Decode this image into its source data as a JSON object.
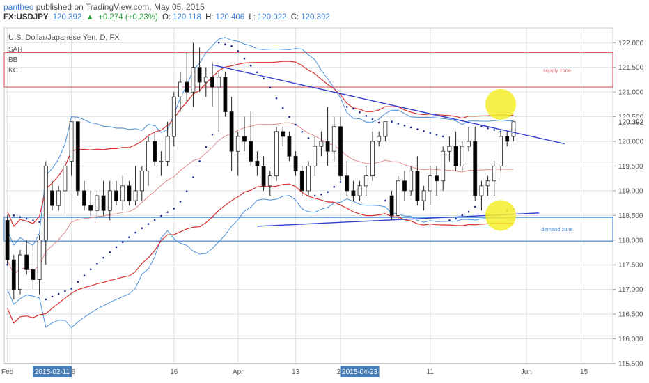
{
  "header": {
    "user": "pantheo",
    "published": "published on TradingView.com, May 05, 2015",
    "symbol": "FX:USDJPY",
    "last": "120.392",
    "change": "+0.274 (+0.23%)",
    "open_label": "O:",
    "open": "120.118",
    "high_label": "H:",
    "high": "120.406",
    "low_label": "L:",
    "low": "120.022",
    "close_label": "C:",
    "close": "120.392"
  },
  "chart_data": {
    "type": "candlestick",
    "title": "U.S. Dollar/Japanese Yen, D, FX",
    "indicators": [
      "SAR",
      "BB",
      "KC"
    ],
    "ylim": [
      115.5,
      122.3
    ],
    "y_ticks": [
      "122.000",
      "121.500",
      "121.000",
      "120.500",
      "120.000",
      "119.500",
      "119.000",
      "118.500",
      "118.000",
      "117.500",
      "117.000",
      "116.500",
      "116.000",
      "115.500"
    ],
    "last_price_label": "120.392",
    "x_labels": [
      {
        "text": "Feb",
        "bar": 0
      },
      {
        "text": "16",
        "bar": 10
      },
      {
        "text": "2015-02-11",
        "bar": 7,
        "highlight": true
      },
      {
        "text": "16",
        "bar": 26
      },
      {
        "text": "Apr",
        "bar": 36
      },
      {
        "text": "13",
        "bar": 45
      },
      {
        "text": "22",
        "bar": 52
      },
      {
        "text": "2015-04-23",
        "bar": 55,
        "highlight": true
      },
      {
        "text": "11",
        "bar": 66
      },
      {
        "text": "Jun",
        "bar": 81
      },
      {
        "text": "15",
        "bar": 90
      }
    ],
    "candles": [
      [
        118.4,
        118.5,
        117.5,
        117.6
      ],
      [
        117.6,
        117.7,
        116.8,
        117.0
      ],
      [
        117.0,
        117.8,
        116.9,
        117.7
      ],
      [
        117.7,
        118.0,
        117.3,
        117.4
      ],
      [
        117.4,
        117.9,
        117.0,
        117.2
      ],
      [
        117.2,
        118.1,
        116.9,
        118.0
      ],
      [
        118.0,
        119.6,
        117.5,
        119.5
      ],
      [
        119.0,
        119.2,
        118.6,
        118.7
      ],
      [
        118.7,
        119.1,
        118.6,
        119.0
      ],
      [
        119.0,
        119.6,
        118.5,
        119.5
      ],
      [
        119.6,
        120.4,
        119.3,
        120.4
      ],
      [
        120.4,
        120.4,
        118.9,
        119.0
      ],
      [
        119.0,
        119.2,
        118.6,
        118.7
      ],
      [
        118.7,
        119.0,
        118.5,
        118.6
      ],
      [
        118.6,
        119.0,
        118.4,
        118.9
      ],
      [
        118.9,
        119.2,
        118.5,
        118.6
      ],
      [
        118.6,
        119.2,
        118.4,
        119.0
      ],
      [
        119.0,
        119.2,
        118.7,
        118.8
      ],
      [
        118.8,
        119.3,
        118.6,
        119.1
      ],
      [
        119.1,
        119.2,
        118.7,
        118.8
      ],
      [
        118.8,
        119.5,
        118.7,
        119.0
      ],
      [
        119.0,
        119.5,
        118.8,
        119.4
      ],
      [
        119.4,
        120.1,
        119.1,
        120.0
      ],
      [
        120.0,
        120.2,
        119.5,
        119.6
      ],
      [
        119.6,
        119.8,
        119.3,
        119.6
      ],
      [
        119.6,
        120.4,
        119.5,
        120.1
      ],
      [
        120.1,
        121.0,
        119.9,
        120.9
      ],
      [
        120.9,
        121.4,
        120.6,
        121.2
      ],
      [
        121.2,
        121.8,
        120.8,
        121.0
      ],
      [
        121.0,
        122.0,
        120.7,
        121.5
      ],
      [
        121.5,
        121.9,
        121.0,
        121.2
      ],
      [
        121.2,
        121.5,
        120.9,
        121.3
      ],
      [
        121.3,
        121.6,
        120.7,
        121.1
      ],
      [
        121.1,
        121.4,
        120.2,
        121.3
      ],
      [
        121.3,
        121.4,
        120.5,
        120.6
      ],
      [
        120.6,
        120.9,
        119.4,
        119.8
      ],
      [
        119.8,
        120.2,
        119.3,
        120.1
      ],
      [
        120.1,
        120.5,
        119.8,
        120.0
      ],
      [
        120.0,
        120.6,
        119.5,
        119.6
      ],
      [
        119.6,
        119.8,
        119.3,
        119.5
      ],
      [
        119.5,
        119.7,
        119.0,
        119.1
      ],
      [
        119.1,
        119.4,
        118.9,
        119.3
      ],
      [
        119.3,
        120.3,
        119.2,
        120.2
      ],
      [
        120.2,
        120.3,
        119.9,
        120.1
      ],
      [
        120.1,
        120.2,
        119.6,
        119.7
      ],
      [
        119.7,
        119.8,
        119.3,
        119.4
      ],
      [
        119.4,
        119.5,
        118.9,
        119.0
      ],
      [
        119.0,
        119.6,
        118.9,
        119.5
      ],
      [
        119.5,
        120.1,
        119.3,
        119.9
      ],
      [
        119.9,
        120.2,
        119.7,
        120.0
      ],
      [
        120.0,
        120.7,
        119.5,
        119.8
      ],
      [
        119.8,
        120.5,
        119.6,
        120.3
      ],
      [
        120.3,
        120.5,
        119.2,
        119.3
      ],
      [
        119.3,
        119.6,
        118.9,
        119.0
      ],
      [
        119.0,
        119.2,
        118.8,
        118.9
      ],
      [
        118.9,
        119.2,
        118.8,
        119.1
      ],
      [
        119.1,
        119.5,
        118.9,
        119.3
      ],
      [
        119.3,
        120.2,
        119.2,
        120.0
      ],
      [
        120.0,
        120.2,
        119.9,
        120.1
      ],
      [
        120.1,
        120.4,
        120.0,
        120.4
      ],
      [
        118.9,
        119.0,
        118.4,
        118.5
      ],
      [
        118.5,
        119.3,
        118.4,
        119.2
      ],
      [
        119.2,
        119.4,
        118.8,
        119.0
      ],
      [
        119.0,
        119.5,
        118.9,
        119.4
      ],
      [
        119.4,
        119.7,
        118.7,
        118.8
      ],
      [
        118.8,
        119.1,
        118.6,
        119.0
      ],
      [
        119.0,
        119.5,
        118.7,
        119.3
      ],
      [
        119.3,
        119.5,
        118.9,
        119.2
      ],
      [
        119.2,
        119.9,
        119.0,
        119.8
      ],
      [
        119.8,
        120.1,
        119.6,
        119.9
      ],
      [
        119.9,
        120.2,
        119.4,
        119.5
      ],
      [
        119.5,
        120.0,
        119.4,
        119.9
      ],
      [
        119.9,
        120.3,
        119.8,
        120.0
      ],
      [
        120.0,
        120.3,
        118.8,
        118.9
      ],
      [
        118.9,
        119.2,
        118.6,
        119.1
      ],
      [
        119.1,
        119.3,
        118.9,
        119.2
      ],
      [
        119.2,
        119.6,
        118.9,
        119.5
      ],
      [
        119.5,
        120.2,
        119.4,
        120.1
      ],
      [
        120.1,
        120.2,
        119.9,
        120.0
      ],
      [
        120.1,
        120.4,
        120.0,
        120.4
      ]
    ],
    "bar_count": 80,
    "total_bars": 95,
    "zones": [
      {
        "name": "supply zone",
        "low": 121.1,
        "high": 121.8,
        "color": "#e0636b",
        "bar_start": 0,
        "bar_end": 94
      },
      {
        "name": "demand zone",
        "low": 117.98,
        "high": 118.46,
        "color": "#4a8fd6",
        "bar_start": 0,
        "bar_end": 94
      }
    ],
    "trendlines": [
      {
        "from_bar": 32,
        "from": 121.55,
        "to_bar": 87,
        "to": 119.95,
        "color": "#2f3fd0"
      },
      {
        "from_bar": 39,
        "from": 118.28,
        "to_bar": 83,
        "to": 118.55,
        "color": "#2f3fd0"
      }
    ],
    "highlights": [
      {
        "bar": 77,
        "price": 120.75,
        "color": "#f5ef2a"
      },
      {
        "bar": 77,
        "price": 118.5,
        "color": "#f5ef2a"
      }
    ],
    "colors": {
      "up": "#ffffff",
      "down": "#000000",
      "bb": "#4a90d9",
      "kc": "#d93030",
      "mid": "#e28a8a",
      "sar": "#1a2a8a",
      "grid": "#dde3ea"
    }
  }
}
